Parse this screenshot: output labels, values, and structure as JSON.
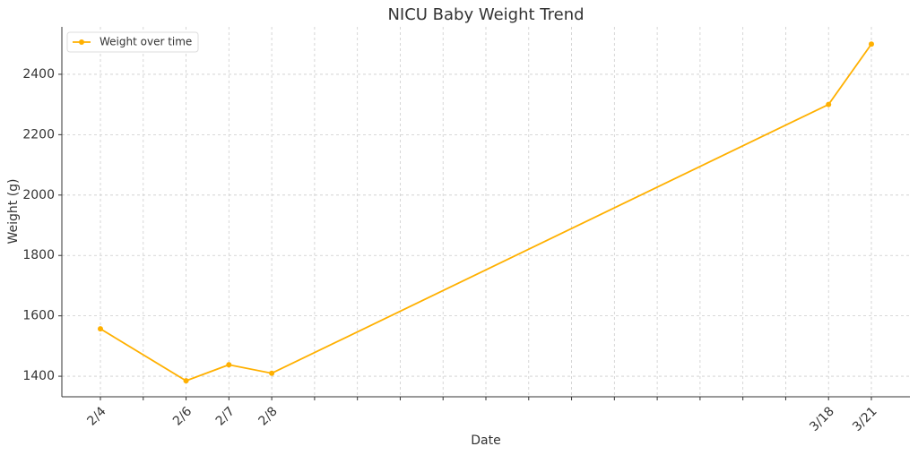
{
  "chart_data": {
    "type": "line",
    "title": "NICU Baby Weight Trend",
    "x_label": "Date",
    "y_label": "Weight (g)",
    "x": [
      0,
      2,
      3,
      4,
      17,
      18
    ],
    "series": [
      {
        "name": "Weight over time",
        "color": "#ffb000",
        "values": [
          1557,
          1385,
          1438,
          1410,
          2300,
          2500
        ]
      }
    ],
    "xlim": [
      -0.9,
      18.9
    ],
    "xticks": [
      {
        "value": 0,
        "label": "2/4"
      },
      {
        "value": 1,
        "label": null
      },
      {
        "value": 2,
        "label": "2/6"
      },
      {
        "value": 3,
        "label": "2/7"
      },
      {
        "value": 4,
        "label": "2/8"
      },
      {
        "value": 5,
        "label": null
      },
      {
        "value": 6,
        "label": null
      },
      {
        "value": 7,
        "label": null
      },
      {
        "value": 8,
        "label": null
      },
      {
        "value": 9,
        "label": null
      },
      {
        "value": 10,
        "label": null
      },
      {
        "value": 11,
        "label": null
      },
      {
        "value": 12,
        "label": null
      },
      {
        "value": 13,
        "label": null
      },
      {
        "value": 14,
        "label": null
      },
      {
        "value": 15,
        "label": null
      },
      {
        "value": 16,
        "label": null
      },
      {
        "value": 17,
        "label": "3/18"
      },
      {
        "value": 18,
        "label": "3/21"
      }
    ],
    "ylim": [
      1332,
      2557
    ],
    "yticks": [
      1400,
      1600,
      1800,
      2000,
      2200,
      2400
    ],
    "grid": true,
    "legend": "upper left"
  }
}
